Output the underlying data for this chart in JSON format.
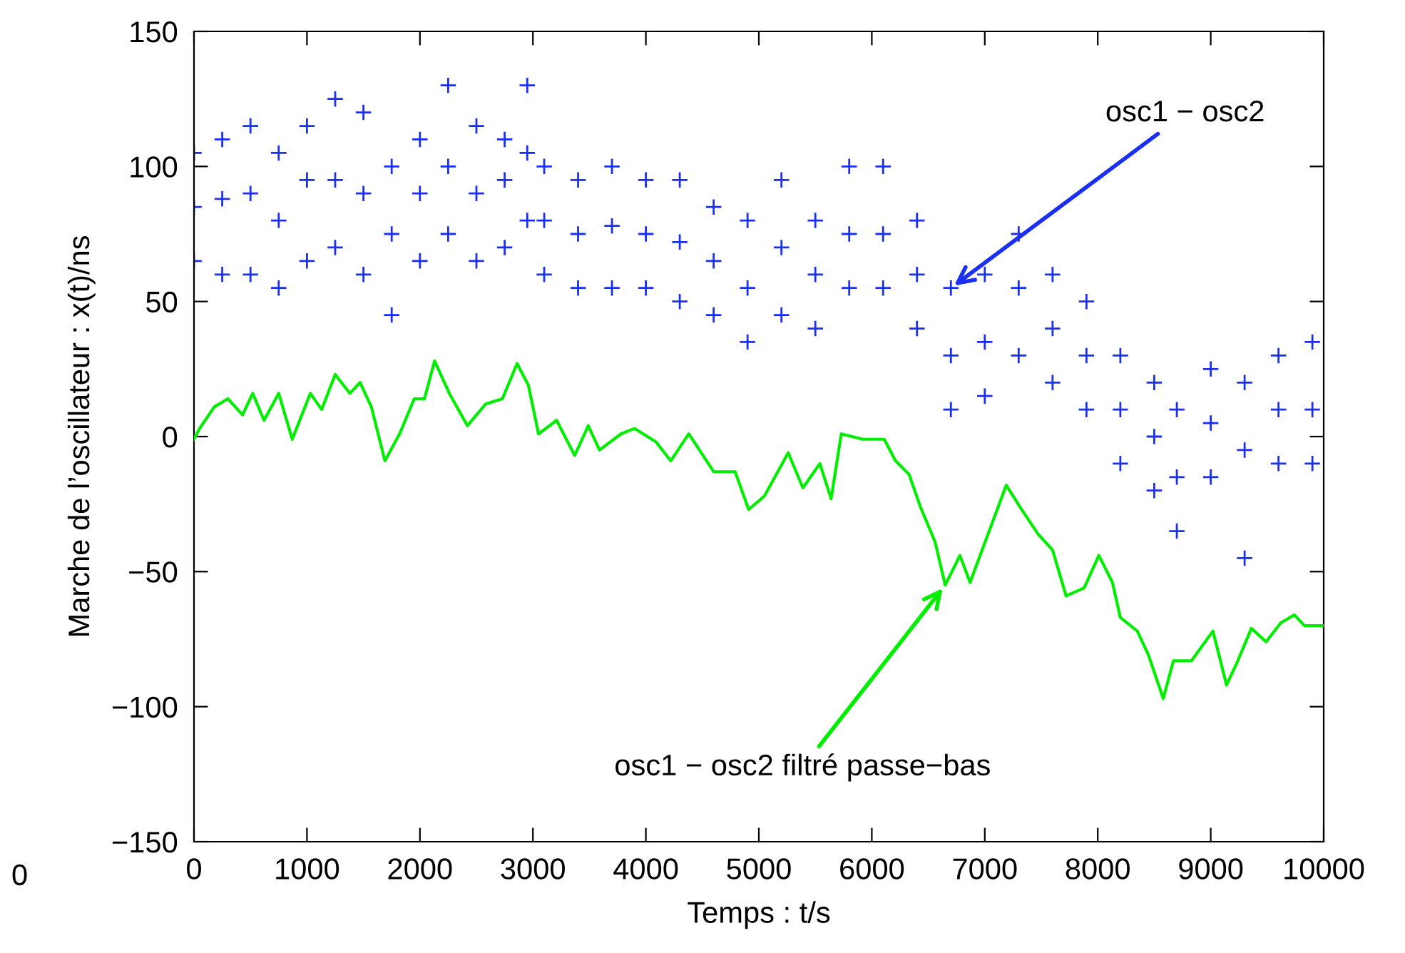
{
  "chart_data": {
    "type": "scatter",
    "xlabel": "Temps : t/s",
    "ylabel": "Marche de l’oscillateur : x(t)/ns",
    "xlim": [
      0,
      10000
    ],
    "ylim": [
      -150,
      150
    ],
    "xticks": [
      0,
      1000,
      2000,
      3000,
      4000,
      5000,
      6000,
      7000,
      8000,
      9000,
      10000
    ],
    "yticks": [
      -150,
      -100,
      -50,
      0,
      50,
      100,
      150
    ],
    "grid": false,
    "legend": false,
    "series": [
      {
        "color": "#1a2ff0",
        "marker": "cross",
        "x": [
          0,
          0,
          0,
          250,
          250,
          250,
          500,
          500,
          500,
          750,
          750,
          750,
          1000,
          1000,
          1000,
          1250,
          1250,
          1250,
          1500,
          1500,
          1500,
          1750,
          1750,
          1750,
          2000,
          2000,
          2000,
          2250,
          2250,
          2250,
          2500,
          2500,
          2500,
          2750,
          2750,
          2750,
          2950,
          2950,
          2950,
          3100,
          3100,
          3100,
          3400,
          3400,
          3400,
          3700,
          3700,
          3700,
          4000,
          4000,
          4000,
          4300,
          4300,
          4300,
          4600,
          4600,
          4600,
          4900,
          4900,
          4900,
          5200,
          5200,
          5200,
          5500,
          5500,
          5500,
          5800,
          5800,
          5800,
          6100,
          6100,
          6100,
          6400,
          6400,
          6400,
          6700,
          6700,
          6700,
          7000,
          7000,
          7000,
          7300,
          7300,
          7300,
          7600,
          7600,
          7600,
          7900,
          7900,
          7900,
          8200,
          8200,
          8200,
          8500,
          8500,
          8500,
          8700,
          8700,
          8700,
          9000,
          9000,
          9000,
          9300,
          9300,
          9300,
          9600,
          9600,
          9600,
          9900,
          9900,
          9900
        ],
        "values": [
          105,
          85,
          65,
          110,
          88,
          60,
          115,
          90,
          60,
          105,
          80,
          55,
          115,
          95,
          65,
          125,
          95,
          70,
          120,
          90,
          60,
          100,
          75,
          45,
          110,
          90,
          65,
          130,
          100,
          75,
          115,
          90,
          65,
          110,
          95,
          70,
          130,
          105,
          80,
          100,
          80,
          60,
          95,
          75,
          55,
          100,
          78,
          55,
          95,
          75,
          55,
          95,
          72,
          50,
          85,
          65,
          45,
          80,
          55,
          35,
          95,
          70,
          45,
          80,
          60,
          40,
          100,
          75,
          55,
          100,
          75,
          55,
          80,
          60,
          40,
          55,
          30,
          10,
          60,
          35,
          15,
          75,
          55,
          30,
          60,
          40,
          20,
          50,
          30,
          10,
          30,
          10,
          -10,
          20,
          0,
          -20,
          10,
          -15,
          -35,
          25,
          5,
          -15,
          20,
          -5,
          -45,
          30,
          10,
          -10,
          35,
          10,
          -10
        ]
      },
      {
        "type": "line",
        "color": "#00ee00",
        "marker": "none",
        "line_style": "solid",
        "x": [
          0,
          50,
          180,
          300,
          430,
          520,
          620,
          750,
          870,
          1030,
          1130,
          1250,
          1380,
          1470,
          1570,
          1690,
          1820,
          1950,
          2040,
          2130,
          2260,
          2420,
          2580,
          2730,
          2860,
          2960,
          3050,
          3210,
          3370,
          3490,
          3590,
          3780,
          3900,
          4090,
          4220,
          4380,
          4600,
          4790,
          4910,
          5050,
          5260,
          5390,
          5540,
          5640,
          5730,
          5920,
          6110,
          6210,
          6330,
          6430,
          6560,
          6650,
          6780,
          6870,
          7030,
          7190,
          7310,
          7470,
          7600,
          7720,
          7880,
          8010,
          8130,
          8200,
          8350,
          8450,
          8580,
          8670,
          8830,
          9020,
          9140,
          9240,
          9360,
          9490,
          9620,
          9740,
          9830,
          10000
        ],
        "values": [
          -1,
          3,
          11,
          14,
          8,
          16,
          6,
          16,
          -1,
          16,
          10,
          23,
          16,
          20,
          11,
          -9,
          1,
          14,
          14,
          28,
          16,
          4,
          12,
          14,
          27,
          19,
          1,
          6,
          -7,
          4,
          -5,
          1,
          3,
          -2,
          -9,
          1,
          -13,
          -13,
          -27,
          -22,
          -6,
          -19,
          -10,
          -23,
          1,
          -1,
          -1,
          -9,
          -14,
          -26,
          -39,
          -55,
          -44,
          -54,
          -36,
          -18,
          -26,
          -36,
          -42,
          -59,
          -56,
          -44,
          -54,
          -67,
          -72,
          -81,
          -97,
          -83,
          -83,
          -72,
          -92,
          -83,
          -71,
          -76,
          -69,
          -66,
          -70,
          -70
        ]
      }
    ],
    "annotations": [
      {
        "text": "osc1 − osc2",
        "x": 6700,
        "y": 55
      },
      {
        "text": "osc1 − osc2 filtré passe−bas",
        "x": 6650,
        "y": -55
      },
      "0"
    ]
  }
}
